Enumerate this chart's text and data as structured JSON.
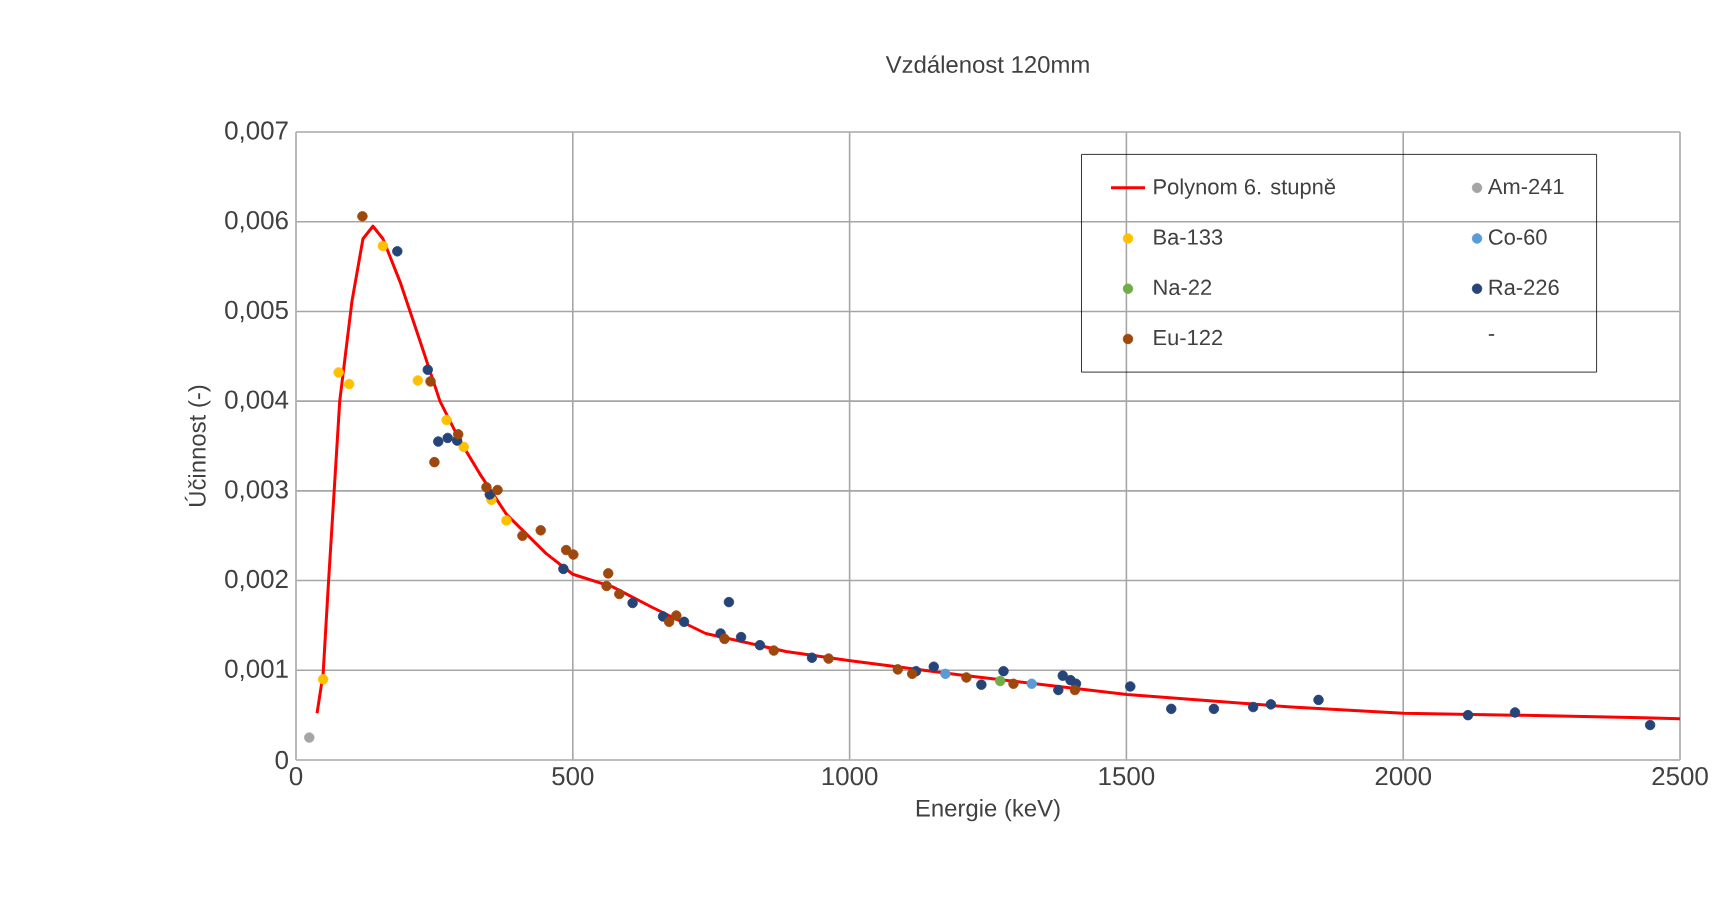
{
  "chart_data": {
    "type": "scatter",
    "title": "Vzdálenost 120mm",
    "xlabel": "Energie (keV)",
    "ylabel": "Účinnost (-)",
    "xlim": [
      0,
      2500
    ],
    "xticks": [
      0,
      500,
      1000,
      1500,
      2000,
      2500
    ],
    "ylim": [
      0,
      0.007
    ],
    "yticks": [
      0,
      {
        "value": 0.001,
        "label": "0,001"
      },
      {
        "value": 0.002,
        "label": "0,002"
      },
      {
        "value": 0.003,
        "label": "0,003"
      },
      {
        "value": 0.004,
        "label": "0,004"
      },
      {
        "value": 0.005,
        "label": "0,005"
      },
      {
        "value": 0.006,
        "label": "0,006"
      },
      {
        "value": 0.007,
        "label": "0,007"
      }
    ],
    "grid": true,
    "legend": "top right",
    "series": [
      {
        "name": "Polynom 6. stupně",
        "type": "line",
        "marker": "none",
        "line_style": "solid",
        "color": "#ff0000",
        "x": [
          38,
          49,
          58,
          79,
          101,
          121,
          139,
          157,
          188,
          224,
          260,
          296,
          332,
          380,
          452,
          500,
          572,
          644,
          740,
          885,
          998,
          1197,
          1501,
          1798,
          2000,
          2202,
          2434,
          2500
        ],
        "values": [
          0.00052,
          0.00096,
          0.00191,
          0.004,
          0.00511,
          0.00581,
          0.00595,
          0.00581,
          0.00533,
          0.00467,
          0.004,
          0.00356,
          0.00319,
          0.00274,
          0.0023,
          0.00207,
          0.00193,
          0.0017,
          0.00141,
          0.00121,
          0.00111,
          0.00095,
          0.00073,
          0.00059,
          0.00052,
          0.0005,
          0.00047,
          0.00046
        ]
      },
      {
        "name": "Am-241",
        "marker": "circle",
        "color": "#a5a5a5",
        "x": [
          24
        ],
        "values": [
          0.00025
        ]
      },
      {
        "name": "Ba-133",
        "marker": "circle",
        "color": "#ffc000",
        "x": [
          49,
          77,
          96,
          157,
          220,
          272,
          303,
          353,
          380
        ],
        "values": [
          0.0009,
          0.00432,
          0.00419,
          0.00573,
          0.00423,
          0.00379,
          0.00349,
          0.0029,
          0.00267
        ]
      },
      {
        "name": "Co-60",
        "marker": "circle",
        "color": "#5b9bd5",
        "x": [
          1173,
          1329
        ],
        "values": [
          0.00096,
          0.00085
        ]
      },
      {
        "name": "Na-22",
        "marker": "circle",
        "color": "#70ad47",
        "x": [
          1272
        ],
        "values": [
          0.00088
        ]
      },
      {
        "name": "Ra-226",
        "marker": "circle",
        "color": "#264478",
        "x": [
          183,
          238,
          257,
          274,
          291,
          350,
          483,
          608,
          663,
          701,
          767,
          782,
          804,
          838,
          932,
          1120,
          1152,
          1238,
          1278,
          1377,
          1385,
          1399,
          1409,
          1507,
          1581,
          1658,
          1729,
          1761,
          1847,
          2117,
          2202,
          2446
        ],
        "values": [
          0.00567,
          0.00435,
          0.00355,
          0.00359,
          0.00356,
          0.00296,
          0.00213,
          0.00175,
          0.0016,
          0.00154,
          0.00141,
          0.00176,
          0.00137,
          0.00128,
          0.00114,
          0.00099,
          0.00104,
          0.00084,
          0.00099,
          0.00078,
          0.00094,
          0.00089,
          0.00085,
          0.00082,
          0.00057,
          0.00057,
          0.00059,
          0.00062,
          0.00067,
          0.0005,
          0.00053,
          0.00039
        ]
      },
      {
        "name": "Eu-122",
        "marker": "circle",
        "color": "#9e480e",
        "x": [
          120,
          243,
          250,
          293,
          344,
          364,
          409,
          442,
          488,
          501,
          561,
          564,
          584,
          674,
          687,
          774,
          863,
          962,
          1087,
          1113,
          1211,
          1296,
          1407
        ],
        "values": [
          0.00606,
          0.00422,
          0.00332,
          0.00363,
          0.00304,
          0.00301,
          0.0025,
          0.00256,
          0.00234,
          0.00229,
          0.00194,
          0.00208,
          0.00185,
          0.00154,
          0.00161,
          0.00135,
          0.00122,
          0.00113,
          0.00101,
          0.00096,
          0.00092,
          0.00085,
          0.00078
        ]
      },
      {
        "name": "-",
        "marker": "none"
      }
    ]
  }
}
